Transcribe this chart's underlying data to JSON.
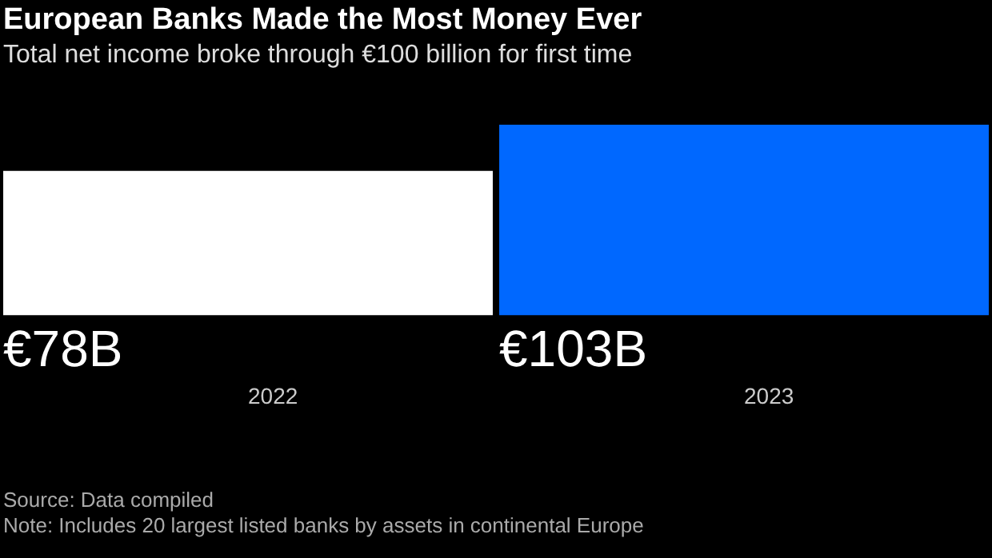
{
  "chart_data": {
    "type": "bar",
    "title": "European Banks Made the Most Money Ever",
    "subtitle": "Total net income broke through €100 billion for first time",
    "categories": [
      "2022",
      "2023"
    ],
    "values": [
      78,
      103
    ],
    "colors": [
      "#ffffff",
      "#0068ff"
    ],
    "data_labels": true,
    "value_labels": [
      "€78B",
      "€103B"
    ],
    "annotations": [
      "Source: Data compiled",
      "Note: Includes 20 largest listed banks by assets in continental Europe"
    ]
  }
}
